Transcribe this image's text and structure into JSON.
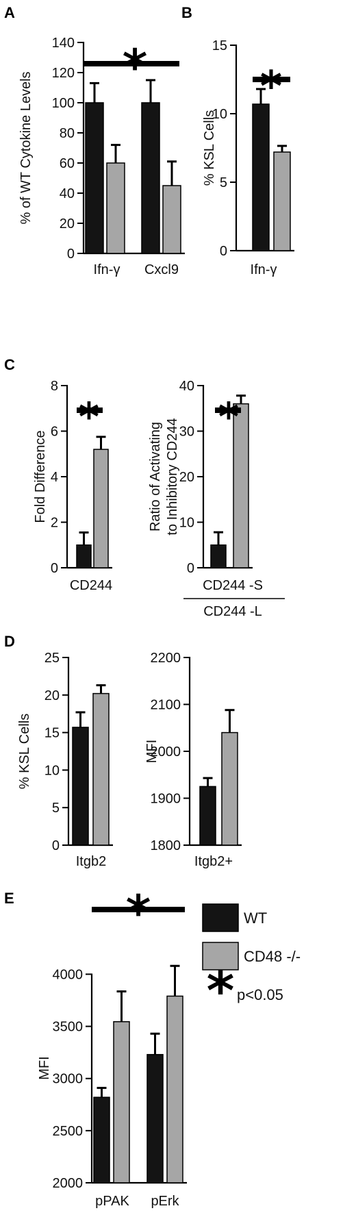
{
  "colors": {
    "wt": "#141414",
    "ko": "#a6a6a6"
  },
  "panel_letters": [
    "A",
    "B",
    "C",
    "D",
    "E"
  ],
  "legend": {
    "items": [
      {
        "label": "WT",
        "color": "#141414"
      },
      {
        "label": "CD48 -/-",
        "color": "#a6a6a6"
      }
    ],
    "sig_symbol": "*",
    "sig_text": "p<0.05"
  },
  "chart_data": [
    {
      "panel": "A",
      "type": "bar",
      "ylabel": "% of WT Cytokine Levels",
      "categories": [
        "Ifn-γ",
        "Cxcl9"
      ],
      "ylim": [
        0,
        140
      ],
      "yticks": [
        0,
        20,
        40,
        60,
        80,
        100,
        120,
        140
      ],
      "series": [
        {
          "name": "WT",
          "values": [
            100,
            100
          ],
          "errors": [
            13,
            15
          ]
        },
        {
          "name": "CD48 -/-",
          "values": [
            60,
            45
          ],
          "errors": [
            12,
            16
          ]
        }
      ],
      "significance": "*"
    },
    {
      "panel": "B",
      "type": "bar",
      "ylabel": "% KSL Cells",
      "categories": [
        "Ifn-γ"
      ],
      "ylim": [
        0,
        15
      ],
      "yticks": [
        0,
        5,
        10,
        15
      ],
      "series": [
        {
          "name": "WT",
          "values": [
            10.7
          ],
          "errors": [
            1.1
          ]
        },
        {
          "name": "CD48 -/-",
          "values": [
            7.2
          ],
          "errors": [
            0.45
          ]
        }
      ],
      "significance": "*"
    },
    {
      "panel": "C",
      "type": "bar",
      "ylabel": "Fold Difference",
      "categories": [
        "CD244"
      ],
      "ylim": [
        0,
        8
      ],
      "yticks": [
        0,
        2,
        4,
        6,
        8
      ],
      "series": [
        {
          "name": "WT",
          "values": [
            1.0
          ],
          "errors": [
            0.55
          ]
        },
        {
          "name": "CD48 -/-",
          "values": [
            5.2
          ],
          "errors": [
            0.55
          ]
        }
      ],
      "significance": "*"
    },
    {
      "panel": "C",
      "type": "bar",
      "ylabel": [
        "Ratio of Activating",
        "to Inhibitory CD244"
      ],
      "categories": [
        "CD244 -S"
      ],
      "category_denominator": "CD244 -L",
      "ylim": [
        0,
        40
      ],
      "yticks": [
        0,
        10,
        20,
        30,
        40
      ],
      "series": [
        {
          "name": "WT",
          "values": [
            5
          ],
          "errors": [
            2.8
          ]
        },
        {
          "name": "CD48 -/-",
          "values": [
            36
          ],
          "errors": [
            1.8
          ]
        }
      ],
      "significance": "*"
    },
    {
      "panel": "D",
      "type": "bar",
      "ylabel": "% KSL Cells",
      "categories": [
        "Itgb2"
      ],
      "ylim": [
        0,
        25
      ],
      "yticks": [
        0,
        5,
        10,
        15,
        20,
        25
      ],
      "series": [
        {
          "name": "WT",
          "values": [
            15.7
          ],
          "errors": [
            2.0
          ]
        },
        {
          "name": "CD48 -/-",
          "values": [
            20.2
          ],
          "errors": [
            1.1
          ]
        }
      ]
    },
    {
      "panel": "D",
      "type": "bar",
      "ylabel": "MFI",
      "categories": [
        "Itgb2+"
      ],
      "ylim": [
        1800,
        2200
      ],
      "yticks": [
        1800,
        1900,
        2000,
        2100,
        2200
      ],
      "series": [
        {
          "name": "WT",
          "values": [
            1925
          ],
          "errors": [
            18
          ]
        },
        {
          "name": "CD48 -/-",
          "values": [
            2040
          ],
          "errors": [
            48
          ]
        }
      ]
    },
    {
      "panel": "E",
      "type": "bar",
      "ylabel": "MFI",
      "categories": [
        "pPAK",
        "pErk"
      ],
      "ylim": [
        2000,
        4200
      ],
      "yticks": [
        2000,
        2500,
        3000,
        3500,
        4000
      ],
      "series": [
        {
          "name": "WT",
          "values": [
            2820,
            3230
          ],
          "errors": [
            90,
            200
          ]
        },
        {
          "name": "CD48 -/-",
          "values": [
            3545,
            3790
          ],
          "errors": [
            290,
            290
          ]
        }
      ],
      "significance": "*"
    }
  ]
}
